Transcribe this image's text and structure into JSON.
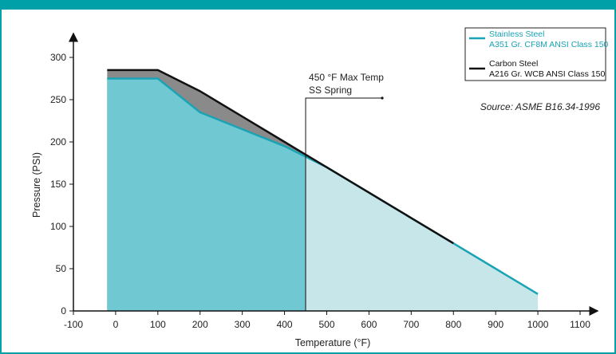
{
  "colors": {
    "frame": "#00a0a8",
    "stainless_line": "#1aa3b5",
    "stainless_fill": "#6fc8d2",
    "stainless_fill_light": "#c6e6ea",
    "carbon_line": "#111111",
    "carbon_fill": "#8a8a8a"
  },
  "chart_data": {
    "type": "area",
    "xlabel": "Temperature (°F)",
    "ylabel": "Pressure (PSI)",
    "xlim": [
      -100,
      1100
    ],
    "ylim": [
      0,
      300
    ],
    "x_ticks": [
      -100,
      0,
      100,
      200,
      300,
      400,
      500,
      600,
      700,
      800,
      900,
      1000,
      1100
    ],
    "y_ticks": [
      0,
      50,
      100,
      150,
      200,
      250,
      300
    ],
    "series": [
      {
        "name": "Stainless Steel A351 Gr. CF8M ANSI Class 150",
        "legend_line1": "Stainless Steel",
        "legend_line2": "A351 Gr. CF8M ANSI Class 150",
        "x": [
          -20,
          100,
          200,
          300,
          400,
          500,
          600,
          700,
          800,
          900,
          1000
        ],
        "y": [
          275,
          275,
          235,
          215,
          195,
          170,
          140,
          110,
          80,
          50,
          20
        ]
      },
      {
        "name": "Carbon Steel A216 Gr. WCB ANSI Class 150",
        "legend_line1": "Carbon Steel",
        "legend_line2": "A216 Gr. WCB ANSI Class 150",
        "x": [
          -20,
          100,
          200,
          300,
          400,
          500,
          600,
          700,
          800
        ],
        "y": [
          285,
          285,
          260,
          230,
          200,
          170,
          140,
          110,
          80
        ]
      }
    ],
    "annotation": {
      "x": 450,
      "line1": "450 °F Max Temp",
      "line2": "SS Spring"
    },
    "source": "Source:  ASME B16.34-1996",
    "legend_position": "top-right",
    "grid": false
  }
}
